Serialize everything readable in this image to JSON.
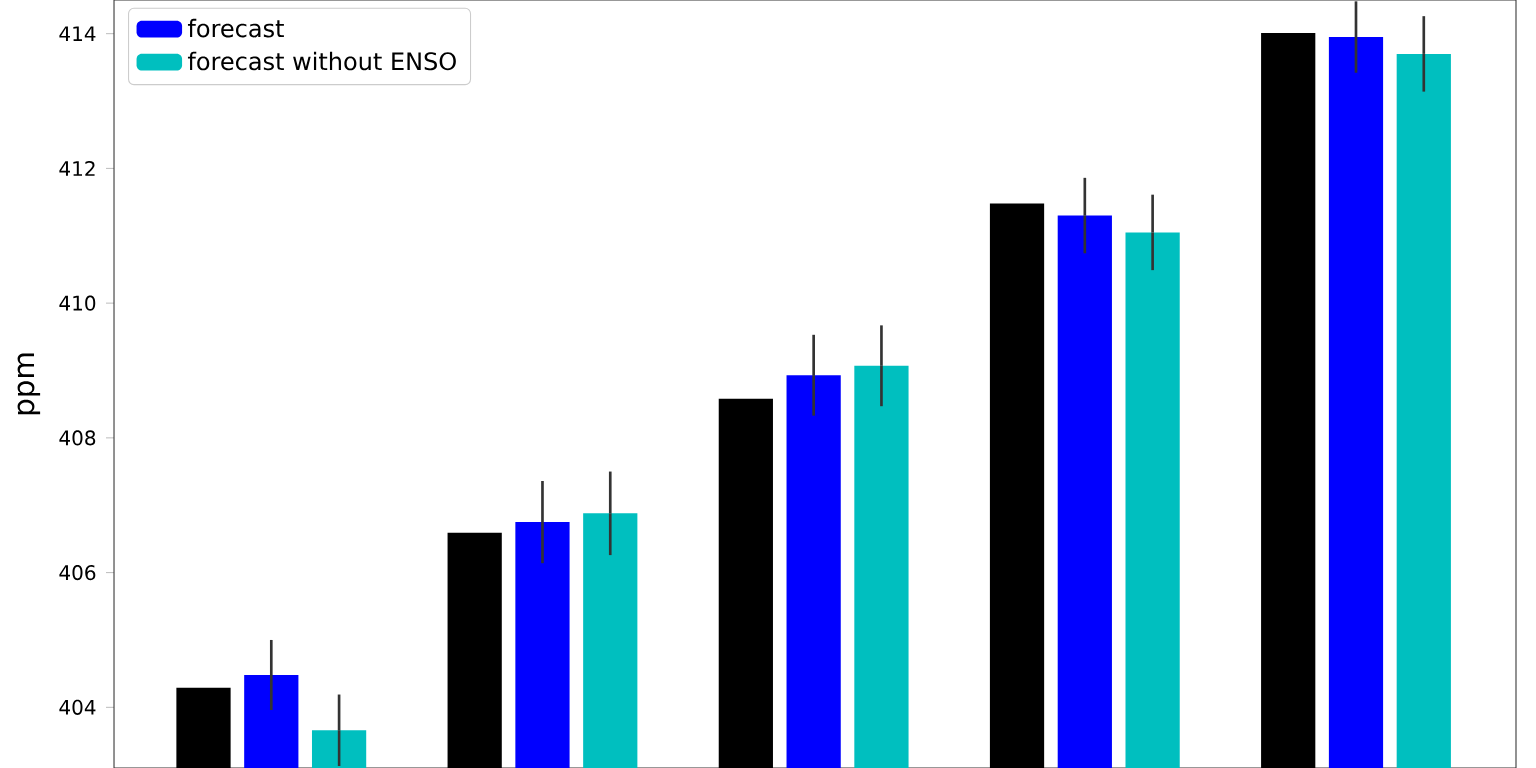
{
  "chart_data": {
    "type": "bar",
    "ylabel": "ppm",
    "categories": [
      null,
      null,
      null,
      null,
      null
    ],
    "series": [
      {
        "color": "#000000",
        "values": [
          404.29,
          406.59,
          408.58,
          411.48,
          414.01
        ]
      },
      {
        "name": "forecast",
        "color": "#0000ff",
        "values": [
          404.48,
          406.75,
          408.93,
          411.3,
          413.95
        ],
        "errors": [
          0.52,
          0.61,
          0.6,
          0.56,
          0.53
        ]
      },
      {
        "name": "forecast without ENSO",
        "color": "#00bfbf",
        "values": [
          403.66,
          406.88,
          409.07,
          411.05,
          413.7
        ],
        "errors": [
          0.53,
          0.62,
          0.6,
          0.56,
          0.56
        ]
      }
    ],
    "ylim": [
      403.1,
      414.5
    ],
    "yticks": [
      404,
      406,
      408,
      410,
      412,
      414
    ],
    "legend": "top left"
  }
}
